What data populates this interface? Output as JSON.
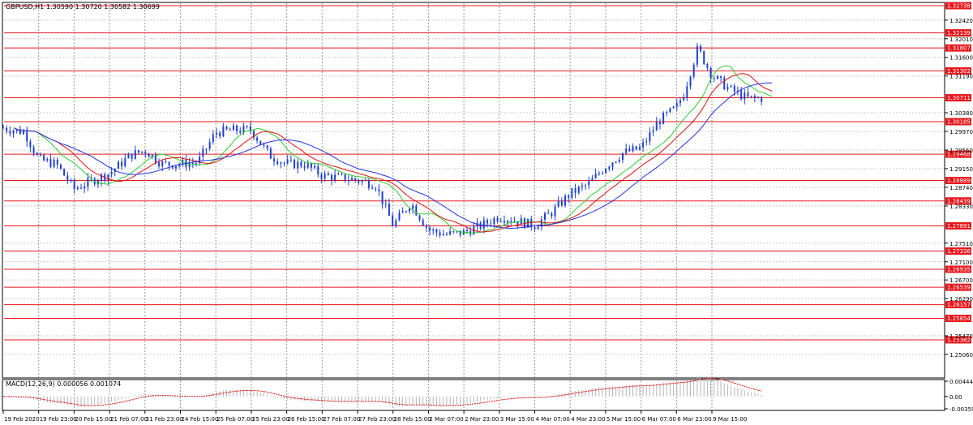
{
  "header": {
    "symbol": "GBPUSD,H1",
    "ohlc": "1.30590 1.30720 1.30582 1.30699"
  },
  "macd_panel": {
    "label": "MACD(12,26,9) 0.000056 0.001074",
    "ticks": [
      "0.004446",
      "0.00",
      "-0.003594"
    ]
  },
  "colors": {
    "candles": "#1f3fd6",
    "levels": "#e8161b",
    "ma_fast": "#2ecc2e",
    "ma_mid": "#e01010",
    "ma_slow": "#2233dd",
    "grid": "#9a9a9a",
    "histogram": "#b5b5b5",
    "signal": "#e01010"
  },
  "chart_data": {
    "type": "candlestick",
    "price_ticks": [
      1.3242,
      1.3201,
      1.316,
      1.3119,
      1.3038,
      1.2997,
      1.2956,
      1.2915,
      1.2874,
      1.2833,
      1.2751,
      1.271,
      1.267,
      1.2629,
      1.2547,
      1.2506
    ],
    "price_tick_labels": [
      "1.32420",
      "1.32010",
      "1.31600",
      "1.31190",
      "1.30380",
      "1.29970",
      "1.29560",
      "1.29150",
      "1.28740",
      "1.28330",
      "1.27510",
      "1.27100",
      "1.26700",
      "1.26290",
      "1.25470",
      "1.25060"
    ],
    "levels": [
      {
        "value": 1.32738,
        "label": "1.32738"
      },
      {
        "value": 1.32139,
        "label": "1.32139"
      },
      {
        "value": 1.31807,
        "label": "1.31807"
      },
      {
        "value": 1.31302,
        "label": "1.31302"
      },
      {
        "value": 1.30711,
        "label": "1.30711"
      },
      {
        "value": 1.30185,
        "label": "1.30185"
      },
      {
        "value": 1.29468,
        "label": "1.29468"
      },
      {
        "value": 1.28889,
        "label": "1.28889"
      },
      {
        "value": 1.28439,
        "label": "1.28439"
      },
      {
        "value": 1.27891,
        "label": "1.27891"
      },
      {
        "value": 1.27336,
        "label": "1.27336"
      },
      {
        "value": 1.26935,
        "label": "1.26935"
      },
      {
        "value": 1.26539,
        "label": "1.26539"
      },
      {
        "value": 1.26157,
        "label": "1.26157"
      },
      {
        "value": 1.25854,
        "label": "1.25854"
      },
      {
        "value": 1.25382,
        "label": "1.25382"
      }
    ],
    "time_labels": [
      "19 Feb 2020",
      "19 Feb 23:00",
      "20 Feb 15:00",
      "21 Feb 07:00",
      "21 Feb 23:00",
      "24 Feb 15:00",
      "25 Feb 07:00",
      "25 Feb 23:00",
      "26 Feb 15:00",
      "27 Feb 07:00",
      "27 Feb 23:00",
      "28 Feb 15:00",
      "2 Mar 07:00",
      "2 Mar 23:00",
      "3 Mar 15:00",
      "4 Mar 07:00",
      "4 Mar 23:00",
      "5 Mar 15:00",
      "6 Mar 07:00",
      "6 Mar 23:00",
      "9 Mar 15:00"
    ],
    "close_path": [
      {
        "t": 0,
        "v": 1.3005
      },
      {
        "t": 0.6,
        "v": 1.2995
      },
      {
        "t": 1,
        "v": 1.2935
      },
      {
        "t": 1.5,
        "v": 1.2925
      },
      {
        "t": 2,
        "v": 1.287
      },
      {
        "t": 2.4,
        "v": 1.2885
      },
      {
        "t": 3,
        "v": 1.2905
      },
      {
        "t": 3.6,
        "v": 1.2945
      },
      {
        "t": 4,
        "v": 1.2955
      },
      {
        "t": 4.5,
        "v": 1.2925
      },
      {
        "t": 5,
        "v": 1.2925
      },
      {
        "t": 5.5,
        "v": 1.293
      },
      {
        "t": 6,
        "v": 1.2995
      },
      {
        "t": 6.5,
        "v": 1.3
      },
      {
        "t": 7,
        "v": 1.3
      },
      {
        "t": 7.5,
        "v": 1.2945
      },
      {
        "t": 8,
        "v": 1.2925
      },
      {
        "t": 8.5,
        "v": 1.2925
      },
      {
        "t": 9,
        "v": 1.29
      },
      {
        "t": 9.5,
        "v": 1.2895
      },
      {
        "t": 10,
        "v": 1.289
      },
      {
        "t": 10.5,
        "v": 1.288
      },
      {
        "t": 11,
        "v": 1.279
      },
      {
        "t": 11.5,
        "v": 1.284
      },
      {
        "t": 12,
        "v": 1.278
      },
      {
        "t": 12.5,
        "v": 1.277
      },
      {
        "t": 13,
        "v": 1.2775
      },
      {
        "t": 13.5,
        "v": 1.279
      },
      {
        "t": 14,
        "v": 1.281
      },
      {
        "t": 14.5,
        "v": 1.28
      },
      {
        "t": 15,
        "v": 1.279
      },
      {
        "t": 15.5,
        "v": 1.282
      },
      {
        "t": 16,
        "v": 1.286
      },
      {
        "t": 16.5,
        "v": 1.288
      },
      {
        "t": 17,
        "v": 1.292
      },
      {
        "t": 17.5,
        "v": 1.295
      },
      {
        "t": 18,
        "v": 1.296
      },
      {
        "t": 18.5,
        "v": 1.302
      },
      {
        "t": 19,
        "v": 1.305
      },
      {
        "t": 19.2,
        "v": 1.308
      },
      {
        "t": 19.6,
        "v": 1.318
      },
      {
        "t": 20,
        "v": 1.312
      },
      {
        "t": 20.5,
        "v": 1.309
      },
      {
        "t": 21,
        "v": 1.307
      },
      {
        "t": 21.4,
        "v": 1.307
      }
    ]
  }
}
